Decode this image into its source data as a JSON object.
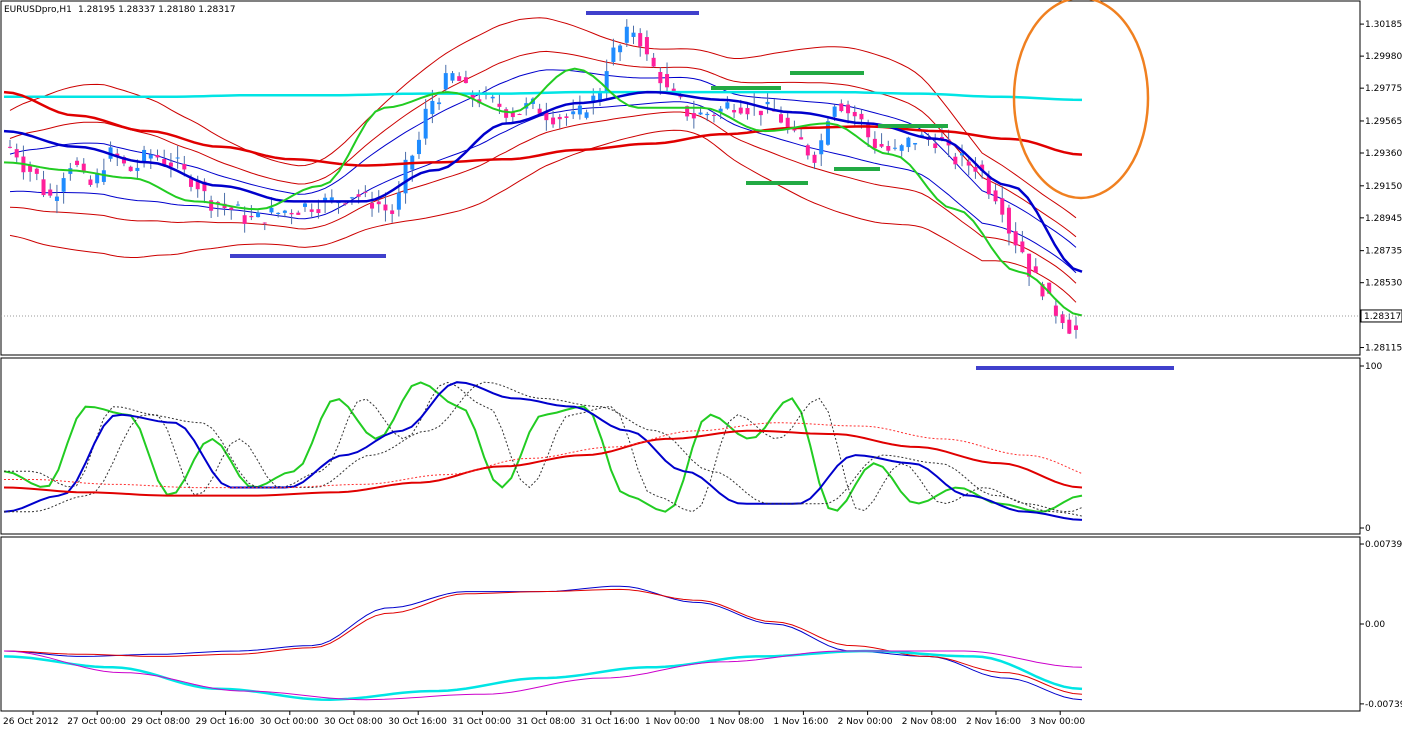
{
  "chart_data": [
    {
      "type": "candlestick",
      "panel": "main",
      "symbol_label": "EURUSDpro,H1",
      "ohlc_label": "1.28195 1.28337 1.28180 1.28317",
      "current_price": "1.28317",
      "ylim": [
        1.2808,
        1.3032
      ],
      "y_ticks": [
        "1.30185",
        "1.29980",
        "1.29775",
        "1.29565",
        "1.29360",
        "1.29150",
        "1.28945",
        "1.28735",
        "1.28530",
        "1.28115"
      ],
      "colors": {
        "bull": "#1f8cff",
        "bear": "#ff1f9a",
        "wick": "#4b6ea9"
      },
      "candles_anchor_closes": [
        1.294,
        1.2925,
        1.2908,
        1.293,
        1.2915,
        1.2935,
        1.2925,
        1.2935,
        1.293,
        1.292,
        1.2905,
        1.29,
        1.2893,
        1.2897,
        1.29,
        1.2903,
        1.2905,
        1.291,
        1.2905,
        1.2898,
        1.2935,
        1.297,
        1.2985,
        1.2972,
        1.2968,
        1.2962,
        1.2966,
        1.296,
        1.2958,
        1.297,
        1.3,
        1.3015,
        1.299,
        1.297,
        1.296,
        1.2962,
        1.2968,
        1.2965,
        1.2962,
        1.2945,
        1.2935,
        1.297,
        1.296,
        1.2942,
        1.2936,
        1.2945,
        1.2945,
        1.2932,
        1.2928,
        1.291,
        1.288,
        1.2855,
        1.2835,
        1.2822
      ],
      "indicators": [
        {
          "name": "",
          "color": "#00e5e5",
          "values": [
            1.2972,
            1.2972,
            1.2972,
            1.2973,
            1.2973,
            1.2974,
            1.2974,
            1.2975,
            1.2975,
            1.2975,
            1.2975,
            1.2974,
            1.2972,
            1.297
          ]
        },
        {
          "name": "",
          "color": "#e00000",
          "values": [
            1.2975,
            1.296,
            1.295,
            1.294,
            1.2932,
            1.2928,
            1.293,
            1.2932,
            1.2938,
            1.2942,
            1.2948,
            1.2952,
            1.2953,
            1.295,
            1.2945,
            1.2935
          ]
        },
        {
          "name": "",
          "color": "#0000cc",
          "values": [
            1.295,
            1.294,
            1.293,
            1.2915,
            1.2905,
            1.2905,
            1.2925,
            1.2955,
            1.2968,
            1.2975,
            1.297,
            1.2962,
            1.2955,
            1.2945,
            1.2915,
            1.286
          ]
        },
        {
          "name": "",
          "color": "#22cc22",
          "values": [
            1.293,
            1.2925,
            1.292,
            1.2905,
            1.29,
            1.2915,
            1.2965,
            1.2975,
            1.2962,
            1.299,
            1.2965,
            1.2965,
            1.295,
            1.2955,
            1.2935,
            1.29,
            1.286,
            1.2832
          ]
        }
      ]
    },
    {
      "type": "line",
      "panel": "oscillator",
      "ylim": [
        0,
        100
      ],
      "y_ticks": [
        "100",
        "0"
      ],
      "series": [
        {
          "name": "",
          "color": "#22cc22",
          "values": [
            35,
            25,
            75,
            70,
            20,
            55,
            25,
            35,
            80,
            55,
            90,
            75,
            25,
            70,
            75,
            20,
            10,
            70,
            55,
            80,
            10,
            40,
            15,
            25,
            15,
            10,
            20
          ]
        },
        {
          "name": "",
          "color": "#0000cc",
          "values": [
            10,
            20,
            70,
            65,
            25,
            25,
            45,
            60,
            90,
            80,
            75,
            60,
            35,
            15,
            15,
            45,
            40,
            20,
            10,
            5
          ]
        },
        {
          "name": "",
          "color": "#e00000",
          "values": [
            25,
            22,
            20,
            20,
            22,
            28,
            38,
            45,
            55,
            60,
            58,
            50,
            40,
            25
          ]
        }
      ]
    },
    {
      "type": "line",
      "panel": "macd",
      "ylim": [
        -0.0074,
        0.0074
      ],
      "y_ticks": [
        "0.007398",
        "0.00",
        "-0.00739"
      ],
      "series": [
        {
          "name": "",
          "color": "#0000cc",
          "values": [
            -0.0025,
            -0.003,
            -0.0028,
            -0.0025,
            -0.002,
            0.0015,
            0.003,
            0.003,
            0.0035,
            0.002,
            0.0,
            -0.0025,
            -0.003,
            -0.005,
            -0.007
          ]
        },
        {
          "name": "",
          "color": "#e00000",
          "values": [
            -0.0025,
            -0.0028,
            -0.003,
            -0.0028,
            -0.0022,
            0.001,
            0.0028,
            0.003,
            0.0032,
            0.0022,
            0.0002,
            -0.002,
            -0.003,
            -0.0045,
            -0.0065
          ]
        },
        {
          "name": "",
          "color": "#00e5e5",
          "values": [
            -0.003,
            -0.004,
            -0.006,
            -0.007,
            -0.0062,
            -0.005,
            -0.004,
            -0.003,
            -0.0025,
            -0.003,
            -0.006
          ]
        },
        {
          "name": "",
          "color": "#cc00cc",
          "values": [
            -0.0025,
            -0.0045,
            -0.0062,
            -0.007,
            -0.0065,
            -0.005,
            -0.0035,
            -0.0025,
            -0.0025,
            -0.004
          ]
        }
      ]
    }
  ],
  "x_ticks": [
    "26 Oct 2012",
    "27 Oct 00:00",
    "29 Oct 08:00",
    "29 Oct 16:00",
    "30 Oct 00:00",
    "30 Oct 08:00",
    "30 Oct 16:00",
    "31 Oct 00:00",
    "31 Oct 08:00",
    "31 Oct 16:00",
    "1 Nov 00:00",
    "1 Nov 08:00",
    "1 Nov 16:00",
    "2 Nov 00:00",
    "2 Nov 08:00",
    "2 Nov 16:00",
    "3 Nov 00:00"
  ],
  "colors": {
    "annotation_blue": "#4040cc",
    "annotation_green": "#22aa44",
    "annotation_orange": "#f08020"
  }
}
